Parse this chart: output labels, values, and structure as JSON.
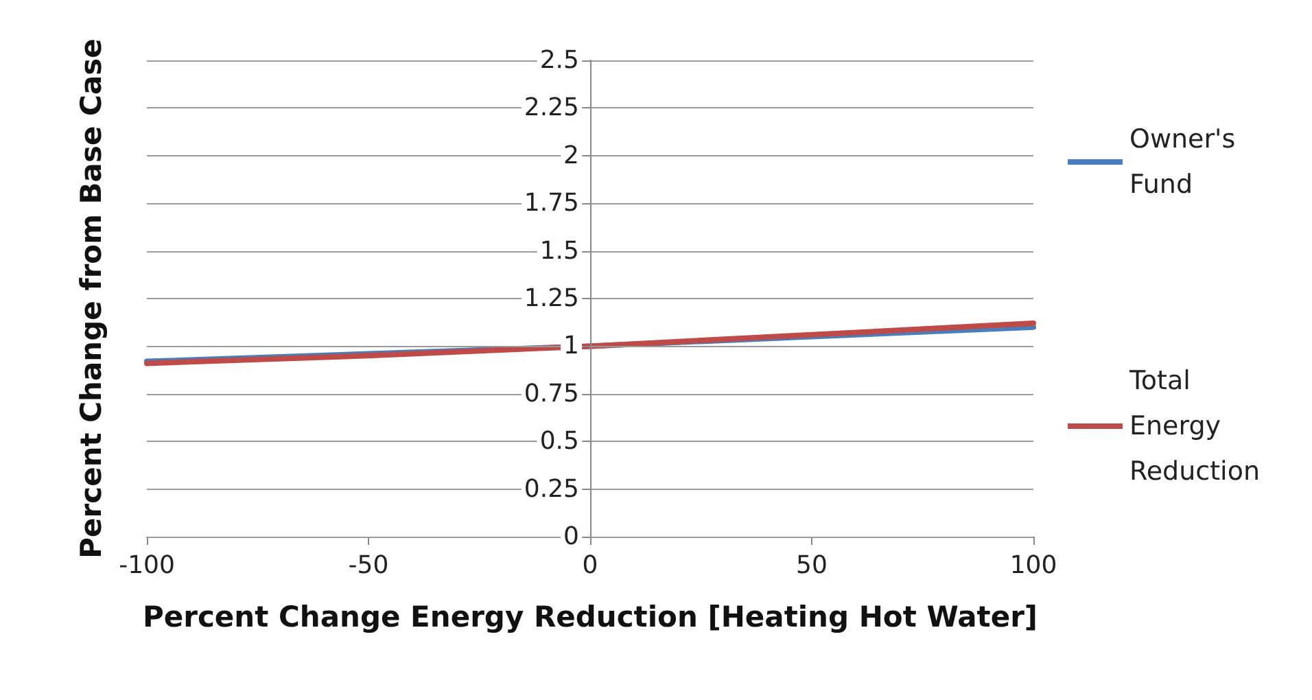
{
  "chart_data": {
    "type": "line",
    "xlabel": "Percent Change Energy Reduction [Heating Hot Water]",
    "ylabel": "Percent Change from Base Case",
    "x": [
      -100,
      -50,
      0,
      50,
      100
    ],
    "series": [
      {
        "name": "Owner's Fund",
        "color": "#4a7ebb",
        "values": [
          0.92,
          0.96,
          1.0,
          1.05,
          1.1
        ]
      },
      {
        "name": "Total Energy Reduction",
        "color": "#be4b48",
        "values": [
          0.91,
          0.95,
          1.0,
          1.06,
          1.12
        ]
      }
    ],
    "xlim": [
      -100,
      100
    ],
    "xticks": [
      -100,
      -50,
      0,
      50,
      100
    ],
    "ylim": [
      0,
      2.5
    ],
    "yticks": [
      0,
      0.25,
      0.5,
      0.75,
      1,
      1.25,
      1.5,
      1.75,
      2,
      2.25,
      2.5
    ],
    "grid": "y",
    "legend": "right",
    "marker": "none",
    "line_style": "solid"
  }
}
